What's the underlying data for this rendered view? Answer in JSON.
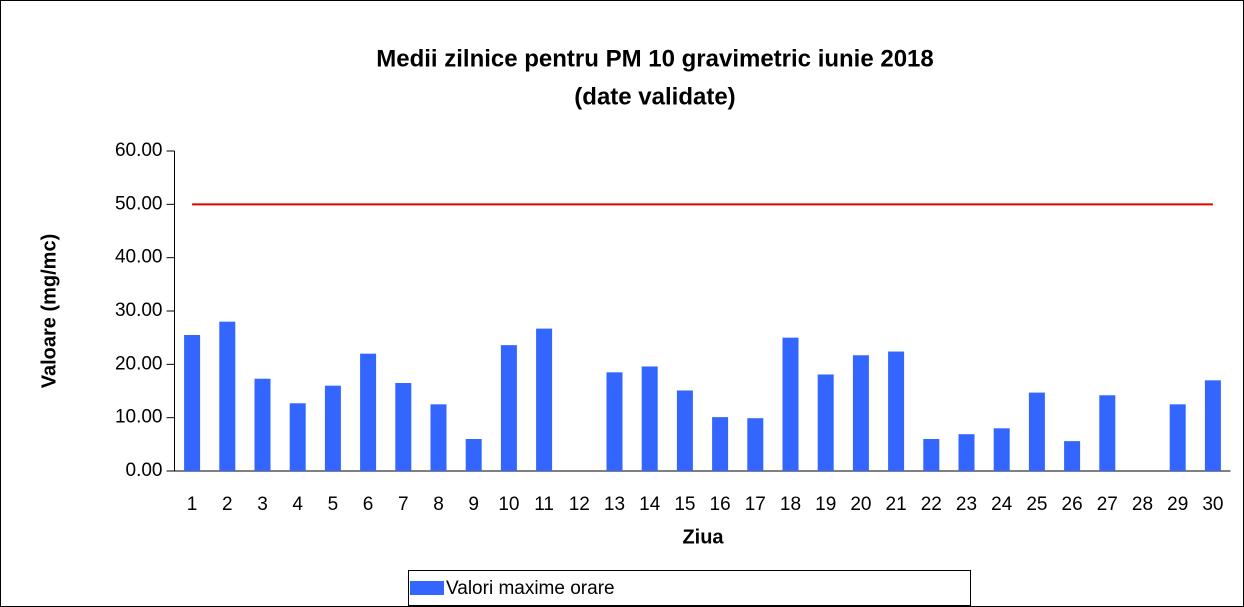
{
  "chart_data": {
    "type": "bar",
    "title": [
      "Medii zilnice pentru PM 10 gravimetric iunie 2018",
      "(date validate)"
    ],
    "x_label": "Ziua",
    "y_label": "Valoare (mg/mc)",
    "categories": [
      "1",
      "2",
      "3",
      "4",
      "5",
      "6",
      "7",
      "8",
      "9",
      "10",
      "11",
      "12",
      "13",
      "14",
      "15",
      "16",
      "17",
      "18",
      "19",
      "20",
      "21",
      "22",
      "23",
      "24",
      "25",
      "26",
      "27",
      "28",
      "29",
      "30"
    ],
    "series": [
      {
        "name": "Valori maxime orare",
        "color": "#3366ff",
        "values": [
          25.5,
          28,
          17.3,
          12.7,
          16,
          22,
          16.5,
          12.5,
          6,
          23.6,
          26.7,
          null,
          18.5,
          19.6,
          15.1,
          10.1,
          9.9,
          25,
          18.1,
          21.7,
          22.4,
          6,
          6.9,
          8,
          14.7,
          5.6,
          14.2,
          null,
          12.5,
          17
        ]
      }
    ],
    "reference_line": {
      "value": 50,
      "color": "#e00000"
    },
    "ylim": [
      0,
      60
    ],
    "yticks": [
      {
        "value": 0,
        "label": "0.00"
      },
      {
        "value": 10,
        "label": "10.00"
      },
      {
        "value": 20,
        "label": "20.00"
      },
      {
        "value": 30,
        "label": "30.00"
      },
      {
        "value": 40,
        "label": "40.00"
      },
      {
        "value": 50,
        "label": "50.00"
      },
      {
        "value": 60,
        "label": "60.00"
      }
    ],
    "legend": "bottom"
  }
}
